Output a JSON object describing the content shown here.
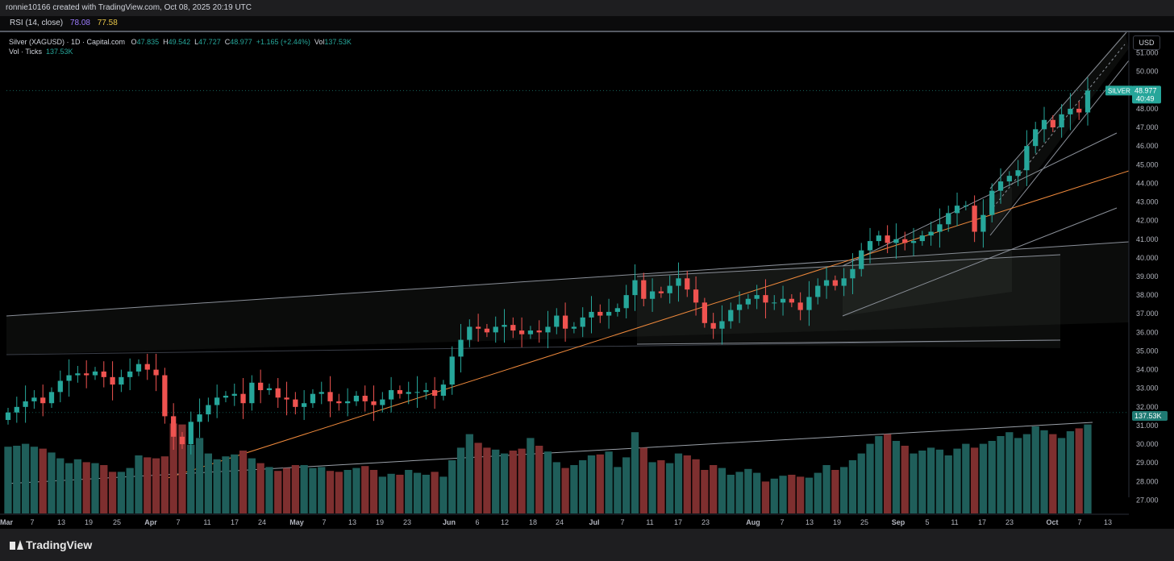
{
  "header": {
    "created_text": "ronnie10166 created with TradingView.com, Oct 08, 2025 20:19 UTC"
  },
  "rsi_pane": {
    "label": "RSI (14, close)",
    "value1": "78.08",
    "value2": "77.58",
    "colors": {
      "value1": "#9c7cff",
      "value2": "#e8c547"
    }
  },
  "legend": {
    "symbol": "Silver (XAGUSD) · 1D · Capital.com",
    "o_label": "O",
    "o": "47.835",
    "h_label": "H",
    "h": "49.542",
    "l_label": "L",
    "l": "47.727",
    "c_label": "C",
    "c": "48.977",
    "change": "+1.165 (+2.44%)",
    "vol_label": "Vol",
    "vol": "137.53K",
    "vol_row_label": "Vol · Ticks",
    "vol_row_value": "137.53K"
  },
  "axis": {
    "currency": "USD",
    "price_tag_label": "SILVER",
    "price_tag_value": "48.977",
    "price_tag_countdown": "40:49",
    "volume_tag": "137.53K"
  },
  "branding": {
    "logo_text": "TradingView"
  },
  "colors": {
    "up": "#26a69a",
    "down": "#ef5350",
    "vol_up": "#1f5e5a",
    "vol_down": "#7e2f2f",
    "trendline": "#f08a3c",
    "channel": "#8a8f98"
  },
  "chart_data": {
    "type": "candlestick",
    "title": "Silver (XAGUSD) · 1D · Capital.com",
    "ylabel": "USD",
    "ylim": [
      26.5,
      51.5
    ],
    "y_ticks": [
      "27.000",
      "28.000",
      "29.000",
      "30.000",
      "31.000",
      "32.000",
      "33.000",
      "34.000",
      "35.000",
      "36.000",
      "37.000",
      "38.000",
      "39.000",
      "40.000",
      "41.000",
      "42.000",
      "43.000",
      "44.000",
      "45.000",
      "46.000",
      "47.000",
      "48.000",
      "49.000",
      "50.000",
      "51.000"
    ],
    "x_ticks": [
      "Mar",
      "7",
      "13",
      "19",
      "25",
      "Apr",
      "7",
      "11",
      "17",
      "24",
      "May",
      "7",
      "13",
      "19",
      "23",
      "Jun",
      "6",
      "12",
      "18",
      "24",
      "Jul",
      "7",
      "11",
      "17",
      "23",
      "Aug",
      "7",
      "13",
      "19",
      "25",
      "Sep",
      "5",
      "11",
      "17",
      "23",
      "Oct",
      "7",
      "13"
    ],
    "bold_ticks": [
      "Mar",
      "Apr",
      "May",
      "Jun",
      "Jul",
      "Aug",
      "Sep",
      "Oct"
    ],
    "closes": [
      31.7,
      32.0,
      32.3,
      32.5,
      32.2,
      32.8,
      33.4,
      33.7,
      33.8,
      33.7,
      33.9,
      33.6,
      33.2,
      33.6,
      33.9,
      34.3,
      34.0,
      33.7,
      31.5,
      30.4,
      30.0,
      31.2,
      31.6,
      32.1,
      32.5,
      32.6,
      32.7,
      32.2,
      33.3,
      32.9,
      33.0,
      32.5,
      32.4,
      32.0,
      32.2,
      32.7,
      32.8,
      32.3,
      32.2,
      32.3,
      32.6,
      32.3,
      32.1,
      32.4,
      32.9,
      32.7,
      32.8,
      32.8,
      32.9,
      32.6,
      33.2,
      34.7,
      35.6,
      36.3,
      36.2,
      36.0,
      36.3,
      36.4,
      36.1,
      35.9,
      36.1,
      36.0,
      36.3,
      36.9,
      36.2,
      36.3,
      36.8,
      37.1,
      36.9,
      37.1,
      37.3,
      38.0,
      38.8,
      37.8,
      38.2,
      38.1,
      38.5,
      38.9,
      38.3,
      37.6,
      36.5,
      36.2,
      36.6,
      37.2,
      37.5,
      37.8,
      38.0,
      37.6,
      37.6,
      37.8,
      37.6,
      37.2,
      37.9,
      38.5,
      38.8,
      38.5,
      38.9,
      39.4,
      40.4,
      40.9,
      41.2,
      40.8,
      41.0,
      40.8,
      40.9,
      41.2,
      41.4,
      41.8,
      42.4,
      42.8,
      42.8,
      41.4,
      42.3,
      43.6,
      44.1,
      44.4,
      44.7,
      46.0,
      46.9,
      47.4,
      47.0,
      47.7,
      48.0,
      47.8,
      48.98
    ],
    "volumes": [
      0.69,
      0.7,
      0.72,
      0.69,
      0.67,
      0.63,
      0.57,
      0.52,
      0.56,
      0.53,
      0.52,
      0.5,
      0.43,
      0.43,
      0.47,
      0.6,
      0.58,
      0.57,
      0.59,
      0.93,
      0.92,
      0.71,
      0.78,
      0.62,
      0.56,
      0.59,
      0.61,
      0.65,
      0.57,
      0.52,
      0.48,
      0.44,
      0.47,
      0.5,
      0.5,
      0.47,
      0.48,
      0.44,
      0.43,
      0.45,
      0.47,
      0.49,
      0.45,
      0.38,
      0.41,
      0.4,
      0.45,
      0.42,
      0.4,
      0.43,
      0.38,
      0.55,
      0.68,
      0.82,
      0.73,
      0.68,
      0.66,
      0.62,
      0.65,
      0.67,
      0.78,
      0.7,
      0.64,
      0.53,
      0.47,
      0.5,
      0.55,
      0.6,
      0.61,
      0.64,
      0.48,
      0.58,
      0.84,
      0.68,
      0.53,
      0.55,
      0.52,
      0.62,
      0.6,
      0.56,
      0.45,
      0.5,
      0.47,
      0.4,
      0.43,
      0.46,
      0.42,
      0.33,
      0.36,
      0.39,
      0.4,
      0.38,
      0.37,
      0.42,
      0.5,
      0.45,
      0.48,
      0.55,
      0.62,
      0.72,
      0.8,
      0.82,
      0.75,
      0.7,
      0.62,
      0.65,
      0.68,
      0.66,
      0.6,
      0.67,
      0.72,
      0.68,
      0.72,
      0.75,
      0.8,
      0.84,
      0.78,
      0.82,
      0.9,
      0.86,
      0.82,
      0.78,
      0.85,
      0.88,
      0.92
    ]
  }
}
